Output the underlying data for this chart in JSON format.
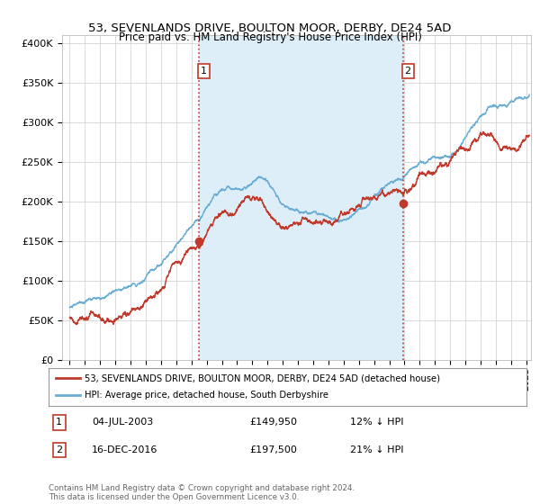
{
  "title": "53, SEVENLANDS DRIVE, BOULTON MOOR, DERBY, DE24 5AD",
  "subtitle": "Price paid vs. HM Land Registry's House Price Index (HPI)",
  "legend_line1": "53, SEVENLANDS DRIVE, BOULTON MOOR, DERBY, DE24 5AD (detached house)",
  "legend_line2": "HPI: Average price, detached house, South Derbyshire",
  "annotation1_label": "1",
  "annotation1_date": "04-JUL-2003",
  "annotation1_price": "£149,950",
  "annotation1_hpi": "12% ↓ HPI",
  "annotation2_label": "2",
  "annotation2_date": "16-DEC-2016",
  "annotation2_price": "£197,500",
  "annotation2_hpi": "21% ↓ HPI",
  "footnote": "Contains HM Land Registry data © Crown copyright and database right 2024.\nThis data is licensed under the Open Government Licence v3.0.",
  "vline1_x": 2003.5,
  "vline2_x": 2016.92,
  "sale1_x": 2003.5,
  "sale1_y": 149950,
  "sale2_x": 2016.92,
  "sale2_y": 197500,
  "ylim": [
    0,
    410000
  ],
  "xlim_start": 1994.5,
  "xlim_end": 2025.3,
  "hpi_color": "#6aaed6",
  "price_color": "#c0392b",
  "vline_color": "#c0392b",
  "shade_color": "#ddeef8",
  "background_color": "#ffffff",
  "grid_color": "#cccccc"
}
